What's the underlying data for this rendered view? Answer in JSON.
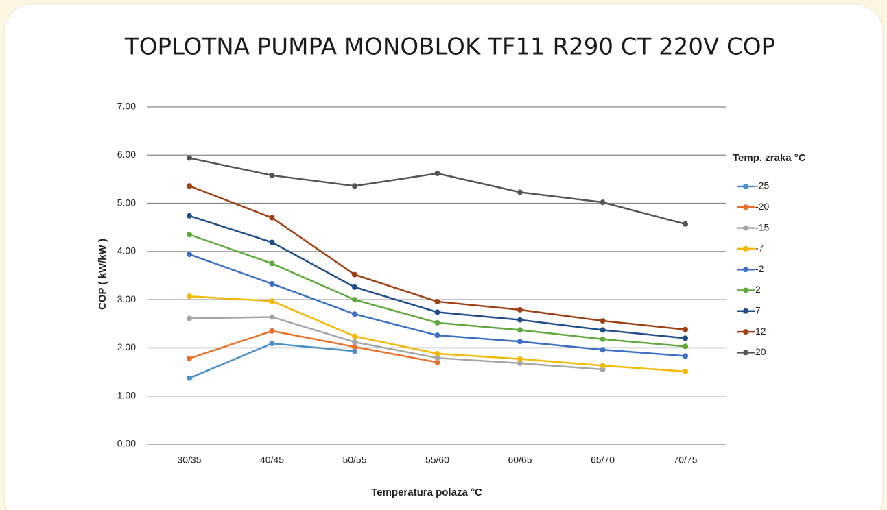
{
  "chart_data": {
    "type": "line",
    "title": "TOPLOTNA PUMPA MONOBLOK TF11 R290 CT 220V COP",
    "x_label": "Temperatura polaza °C",
    "y_label": "COP ( kW/kW )",
    "legend_title": "Temp. zraka °C",
    "legend": "right",
    "grid": true,
    "categories": [
      "30/35",
      "40/45",
      "50/55",
      "55/60",
      "60/65",
      "65/70",
      "70/75"
    ],
    "ylim": [
      0,
      7
    ],
    "yticks": [
      {
        "value": 0,
        "label": "0.00"
      },
      {
        "value": 1,
        "label": "1.00"
      },
      {
        "value": 2,
        "label": "2.00"
      },
      {
        "value": 3,
        "label": "3.00"
      },
      {
        "value": 4,
        "label": "4.00"
      },
      {
        "value": 5,
        "label": "5.00"
      },
      {
        "value": 6,
        "label": "6.00"
      },
      {
        "value": 7,
        "label": "7.00"
      }
    ],
    "series": [
      {
        "name": "-25",
        "color": "#4a90c8",
        "values": [
          1.37,
          2.09,
          1.93,
          null,
          null,
          null,
          null
        ]
      },
      {
        "name": "-20",
        "color": "#e8702a",
        "values": [
          1.78,
          2.35,
          2.02,
          1.7,
          null,
          null,
          null
        ]
      },
      {
        "name": "-15",
        "color": "#a5a5a5",
        "values": [
          2.61,
          2.64,
          2.12,
          1.79,
          1.68,
          1.55,
          null
        ]
      },
      {
        "name": "-7",
        "color": "#f5b800",
        "values": [
          3.07,
          2.97,
          2.24,
          1.88,
          1.77,
          1.63,
          1.51
        ]
      },
      {
        "name": "-2",
        "color": "#3a6fc4",
        "values": [
          3.94,
          3.33,
          2.7,
          2.26,
          2.13,
          1.96,
          1.83
        ]
      },
      {
        "name": "2",
        "color": "#5ea83d",
        "values": [
          4.35,
          3.75,
          3.0,
          2.52,
          2.37,
          2.18,
          2.03
        ]
      },
      {
        "name": "7",
        "color": "#1f4e89",
        "values": [
          4.74,
          4.19,
          3.26,
          2.74,
          2.58,
          2.37,
          2.2
        ]
      },
      {
        "name": "12",
        "color": "#9e3f14",
        "values": [
          5.36,
          4.7,
          3.52,
          2.96,
          2.79,
          2.56,
          2.38
        ]
      },
      {
        "name": "20",
        "color": "#555555",
        "values": [
          5.94,
          5.58,
          5.36,
          5.62,
          5.23,
          5.02,
          4.57
        ]
      }
    ]
  }
}
